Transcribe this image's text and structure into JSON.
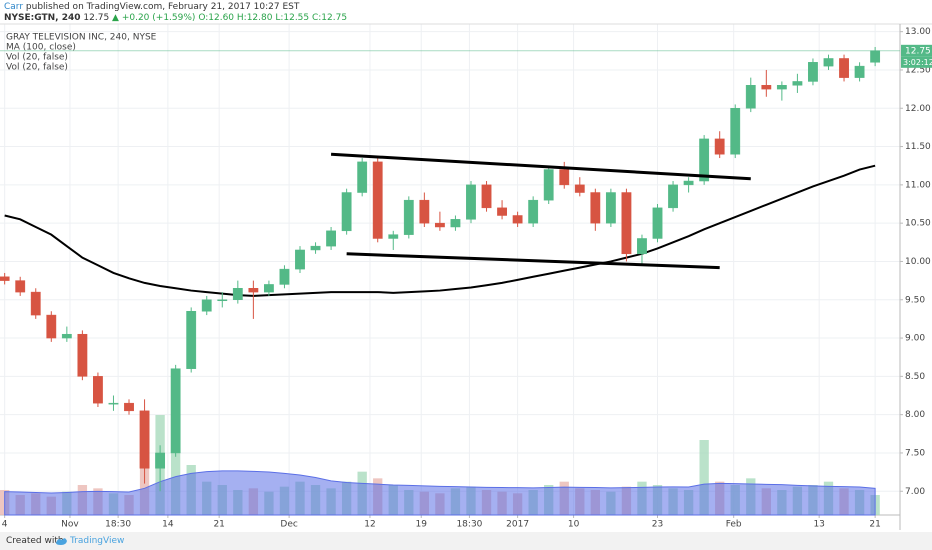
{
  "header": {
    "author": "Carr",
    "published": "published on TradingView.com, February 21, 2017 10:27 EST",
    "symbol": "NYSE:GTN, 240",
    "price": "12.75",
    "change": "▲ +0.20 (+1.59%)",
    "ohlc": "O:12.60 H:12.80 L:12.55 C:12.75"
  },
  "legend": [
    "GRAY TELEVISION INC, 240, NYSE",
    "MA (100, close)",
    "Vol (20, false)",
    "Vol (20, false)"
  ],
  "footer": {
    "created": "Created with",
    "brand": "TradingView"
  },
  "chart_data": {
    "type": "candlestick",
    "candles": [
      [
        9.8,
        9.85,
        9.7,
        9.75
      ],
      [
        9.75,
        9.8,
        9.55,
        9.6
      ],
      [
        9.6,
        9.65,
        9.25,
        9.3
      ],
      [
        9.3,
        9.35,
        8.95,
        9.0
      ],
      [
        9.0,
        9.15,
        8.95,
        9.05
      ],
      [
        9.05,
        9.1,
        8.45,
        8.5
      ],
      [
        8.5,
        8.55,
        8.1,
        8.15
      ],
      [
        8.15,
        8.25,
        8.05,
        8.15
      ],
      [
        8.15,
        8.2,
        8.0,
        8.05
      ],
      [
        8.05,
        8.2,
        7.1,
        7.3
      ],
      [
        7.3,
        7.6,
        7.0,
        7.5
      ],
      [
        7.5,
        8.65,
        7.45,
        8.6
      ],
      [
        8.6,
        9.4,
        8.55,
        9.35
      ],
      [
        9.35,
        9.55,
        9.3,
        9.5
      ],
      [
        9.5,
        9.6,
        9.4,
        9.5
      ],
      [
        9.5,
        9.75,
        9.45,
        9.65
      ],
      [
        9.65,
        9.75,
        9.25,
        9.6
      ],
      [
        9.6,
        9.75,
        9.55,
        9.7
      ],
      [
        9.7,
        9.95,
        9.65,
        9.9
      ],
      [
        9.9,
        10.2,
        9.85,
        10.15
      ],
      [
        10.15,
        10.25,
        10.1,
        10.2
      ],
      [
        10.2,
        10.45,
        10.15,
        10.4
      ],
      [
        10.4,
        10.95,
        10.35,
        10.9
      ],
      [
        10.9,
        11.35,
        10.85,
        11.3
      ],
      [
        11.3,
        11.35,
        10.25,
        10.3
      ],
      [
        10.3,
        10.4,
        10.15,
        10.35
      ],
      [
        10.35,
        10.85,
        10.3,
        10.8
      ],
      [
        10.8,
        10.9,
        10.45,
        10.5
      ],
      [
        10.5,
        10.65,
        10.4,
        10.45
      ],
      [
        10.45,
        10.6,
        10.4,
        10.55
      ],
      [
        10.55,
        11.05,
        10.5,
        11.0
      ],
      [
        11.0,
        11.05,
        10.65,
        10.7
      ],
      [
        10.7,
        10.8,
        10.55,
        10.6
      ],
      [
        10.6,
        10.65,
        10.45,
        10.5
      ],
      [
        10.5,
        10.85,
        10.45,
        10.8
      ],
      [
        10.8,
        11.25,
        10.75,
        11.2
      ],
      [
        11.2,
        11.3,
        10.95,
        11.0
      ],
      [
        11.0,
        11.1,
        10.85,
        10.9
      ],
      [
        10.9,
        10.95,
        10.4,
        10.5
      ],
      [
        10.5,
        10.95,
        10.45,
        10.9
      ],
      [
        10.9,
        10.95,
        10.0,
        10.1
      ],
      [
        10.1,
        10.35,
        9.95,
        10.3
      ],
      [
        10.3,
        10.75,
        10.25,
        10.7
      ],
      [
        10.7,
        11.05,
        10.65,
        11.0
      ],
      [
        11.0,
        11.1,
        10.9,
        11.05
      ],
      [
        11.05,
        11.65,
        11.0,
        11.6
      ],
      [
        11.6,
        11.7,
        11.35,
        11.4
      ],
      [
        11.4,
        12.05,
        11.35,
        12.0
      ],
      [
        12.0,
        12.4,
        11.95,
        12.3
      ],
      [
        12.3,
        12.5,
        12.15,
        12.25
      ],
      [
        12.25,
        12.35,
        12.1,
        12.3
      ],
      [
        12.3,
        12.45,
        12.2,
        12.35
      ],
      [
        12.35,
        12.65,
        12.3,
        12.6
      ],
      [
        12.55,
        12.7,
        12.5,
        12.65
      ],
      [
        12.65,
        12.7,
        12.35,
        12.4
      ],
      [
        12.4,
        12.6,
        12.35,
        12.55
      ],
      [
        12.6,
        12.8,
        12.55,
        12.75
      ]
    ],
    "volume": [
      150,
      120,
      130,
      110,
      140,
      180,
      160,
      130,
      120,
      350,
      600,
      400,
      300,
      200,
      180,
      150,
      160,
      140,
      170,
      200,
      180,
      160,
      200,
      260,
      220,
      180,
      150,
      140,
      130,
      160,
      170,
      150,
      140,
      130,
      150,
      180,
      200,
      160,
      150,
      140,
      170,
      200,
      180,
      160,
      150,
      450,
      200,
      180,
      220,
      160,
      150,
      170,
      180,
      200,
      160,
      150,
      120
    ],
    "volume_ma": [
      140,
      138,
      135,
      132,
      135,
      140,
      142,
      140,
      138,
      160,
      200,
      230,
      250,
      260,
      265,
      265,
      262,
      258,
      250,
      240,
      225,
      205,
      195,
      190,
      185,
      180,
      178,
      175,
      172,
      170,
      168,
      166,
      165,
      164,
      163,
      165,
      167,
      166,
      165,
      163,
      164,
      166,
      168,
      169,
      168,
      185,
      190,
      188,
      186,
      184,
      182,
      178,
      175,
      172,
      170,
      168,
      160
    ],
    "ma": [
      10.6,
      10.55,
      10.45,
      10.35,
      10.2,
      10.05,
      9.95,
      9.85,
      9.78,
      9.72,
      9.68,
      9.65,
      9.62,
      9.6,
      9.58,
      9.56,
      9.55,
      9.56,
      9.57,
      9.58,
      9.59,
      9.6,
      9.6,
      9.6,
      9.6,
      9.59,
      9.6,
      9.61,
      9.62,
      9.64,
      9.66,
      9.69,
      9.72,
      9.76,
      9.8,
      9.84,
      9.88,
      9.92,
      9.96,
      10.0,
      10.05,
      10.1,
      10.17,
      10.25,
      10.33,
      10.42,
      10.5,
      10.58,
      10.66,
      10.74,
      10.82,
      10.9,
      10.98,
      11.05,
      11.12,
      11.2,
      11.25
    ],
    "trendlines": [
      {
        "x": [
          21,
          48
        ],
        "y": [
          11.4,
          11.08
        ]
      },
      {
        "x": [
          22,
          46
        ],
        "y": [
          10.1,
          9.92
        ]
      }
    ],
    "up_color": "#53b987",
    "down_color": "#d75442",
    "ma_color": "#000000",
    "volume_up_color": "#a9dbbd",
    "volume_down_color": "#eab8b2",
    "volume_ma_color": "#5b6fe6",
    "last_price_label": "12.75",
    "countdown": "3:02:12",
    "xlim": [
      -0.3,
      57.6
    ],
    "ylim": [
      6.69,
      13.1
    ],
    "xticks": [
      {
        "value": 0,
        "label": "4"
      },
      {
        "value": 4.2,
        "label": "Nov"
      },
      {
        "value": 7.3,
        "label": "18:30"
      },
      {
        "value": 10.5,
        "label": "14"
      },
      {
        "value": 13.8,
        "label": "21"
      },
      {
        "value": 18.3,
        "label": "Dec"
      },
      {
        "value": 23.5,
        "label": "12"
      },
      {
        "value": 26.8,
        "label": "19"
      },
      {
        "value": 29.9,
        "label": "18:30"
      },
      {
        "value": 33,
        "label": "2017"
      },
      {
        "value": 36.6,
        "label": "10"
      },
      {
        "value": 42,
        "label": "23"
      },
      {
        "value": 46.9,
        "label": "Feb"
      },
      {
        "value": 52.4,
        "label": "13"
      },
      {
        "value": 56,
        "label": "21"
      }
    ],
    "yticks": [
      {
        "value": 7,
        "label": "7.00"
      },
      {
        "value": 7.5,
        "label": "7.50"
      },
      {
        "value": 8,
        "label": "8.00"
      },
      {
        "value": 8.5,
        "label": "8.50"
      },
      {
        "value": 9,
        "label": "9.00"
      },
      {
        "value": 9.5,
        "label": "9.50"
      },
      {
        "value": 10,
        "label": "10.00"
      },
      {
        "value": 10.5,
        "label": "10.50"
      },
      {
        "value": 11,
        "label": "11.00"
      },
      {
        "value": 11.5,
        "label": "11.50"
      },
      {
        "value": 12,
        "label": "12.00"
      },
      {
        "value": 12.5,
        "label": "12.50"
      },
      {
        "value": 13,
        "label": "13.00"
      }
    ],
    "grid": true
  }
}
